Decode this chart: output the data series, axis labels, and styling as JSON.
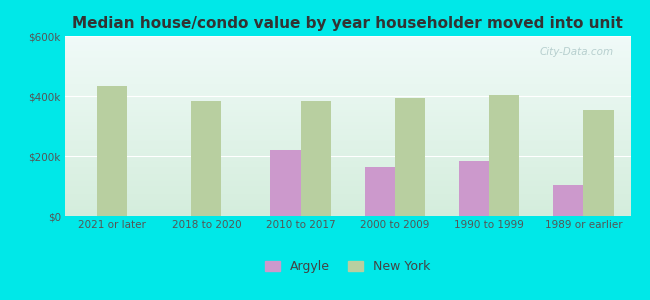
{
  "title": "Median house/condo value by year householder moved into unit",
  "categories": [
    "2021 or later",
    "2018 to 2020",
    "2010 to 2017",
    "2000 to 2009",
    "1990 to 1999",
    "1989 or earlier"
  ],
  "argyle_values": [
    null,
    null,
    220000,
    163000,
    183000,
    105000
  ],
  "newyork_values": [
    435000,
    385000,
    382000,
    392000,
    402000,
    355000
  ],
  "argyle_color": "#cc99cc",
  "newyork_color": "#b8cfa0",
  "background_outer": "#00e8e8",
  "background_inner_top": "#f0faf8",
  "background_inner_bottom": "#d4eddc",
  "ylim": [
    0,
    600000
  ],
  "yticks": [
    0,
    200000,
    400000,
    600000
  ],
  "ytick_labels": [
    "$0",
    "$200k",
    "$400k",
    "$600k"
  ],
  "bar_width": 0.32,
  "watermark": "City-Data.com",
  "legend_labels": [
    "Argyle",
    "New York"
  ]
}
